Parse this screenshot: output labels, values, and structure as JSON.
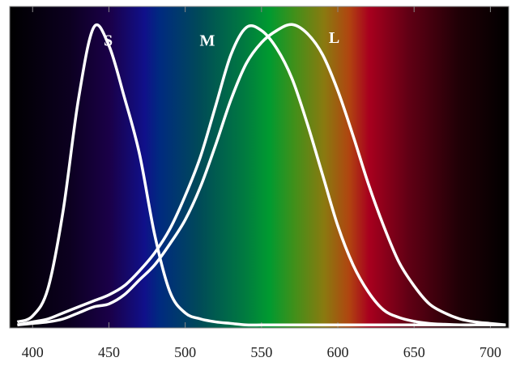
{
  "chart_data": {
    "type": "line",
    "x": [
      390,
      400,
      410,
      420,
      430,
      440,
      450,
      460,
      470,
      480,
      490,
      500,
      510,
      520,
      530,
      540,
      550,
      560,
      570,
      580,
      590,
      600,
      610,
      620,
      630,
      640,
      650,
      660,
      670,
      680,
      690,
      700,
      710
    ],
    "series": [
      {
        "name": "S",
        "color": "#ffffff",
        "values": [
          0.01,
          0.03,
          0.12,
          0.38,
          0.75,
          0.99,
          0.93,
          0.76,
          0.57,
          0.3,
          0.11,
          0.04,
          0.02,
          0.01,
          0.005,
          0,
          0,
          0,
          0,
          0,
          0,
          0,
          0,
          0,
          0,
          0,
          0,
          0,
          0,
          0,
          0,
          0,
          0
        ]
      },
      {
        "name": "M",
        "color": "#ffffff",
        "values": [
          0,
          0.01,
          0.02,
          0.04,
          0.06,
          0.08,
          0.1,
          0.13,
          0.18,
          0.24,
          0.32,
          0.43,
          0.56,
          0.73,
          0.9,
          0.99,
          0.98,
          0.92,
          0.82,
          0.67,
          0.5,
          0.33,
          0.2,
          0.11,
          0.05,
          0.025,
          0.012,
          0.005,
          0.002,
          0,
          0,
          0,
          0
        ]
      },
      {
        "name": "L",
        "color": "#ffffff",
        "values": [
          0,
          0.005,
          0.01,
          0.02,
          0.04,
          0.06,
          0.07,
          0.1,
          0.15,
          0.2,
          0.27,
          0.35,
          0.46,
          0.6,
          0.75,
          0.87,
          0.94,
          0.98,
          1.0,
          0.97,
          0.9,
          0.78,
          0.63,
          0.47,
          0.33,
          0.21,
          0.13,
          0.07,
          0.04,
          0.02,
          0.01,
          0.005,
          0
        ]
      }
    ],
    "xlim": [
      385,
      712
    ],
    "ylim": [
      -0.01,
      1.06
    ],
    "xticks": [
      400,
      450,
      500,
      550,
      600,
      650,
      700
    ]
  }
}
